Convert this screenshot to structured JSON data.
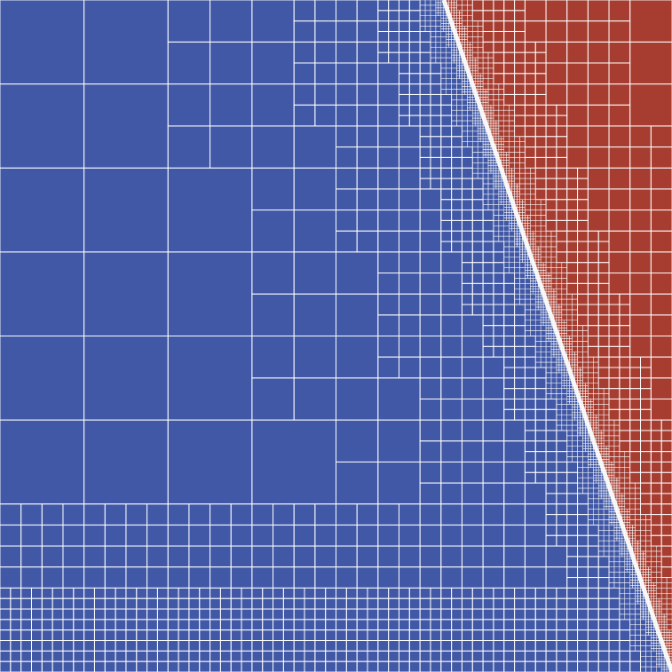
{
  "visualization": {
    "type": "adaptive quadtree mesh",
    "colors": {
      "cold": "#4158a6",
      "hot": "#a63d30",
      "front": "#f2f2f2",
      "grid_lines": "#ffffff"
    }
  }
}
